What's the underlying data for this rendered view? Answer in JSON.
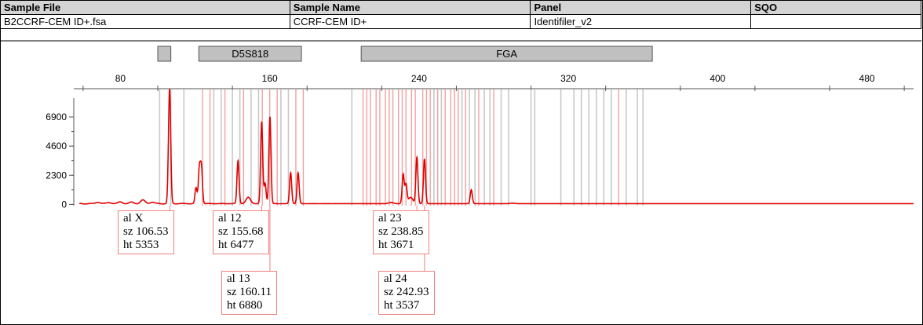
{
  "header": {
    "columns": [
      "Sample File",
      "Sample Name",
      "Panel",
      "SQO"
    ],
    "values": [
      "B2CCRF-CEM ID+.fsa",
      "CCRF-CEM ID+",
      "Identifiler_v2",
      ""
    ]
  },
  "colors": {
    "trace": "#e00000",
    "bin_gray": "#c8c8c8",
    "bin_red": "#f4a0a0",
    "marker_fill": "#c0c0c0",
    "label_border": "#f08080"
  },
  "chart_data": {
    "type": "line",
    "title": "",
    "xlabel": "",
    "ylabel": "",
    "xlim": [
      55,
      505
    ],
    "ylim": [
      -100,
      8200
    ],
    "x_ticks": [
      80,
      160,
      240,
      320,
      400,
      480
    ],
    "y_ticks": [
      0,
      2300,
      4600,
      6900
    ],
    "grid": false,
    "markers": [
      {
        "name": "",
        "start": 100,
        "end": 107
      },
      {
        "name": "D5S818",
        "start": 122,
        "end": 177
      },
      {
        "name": "FGA",
        "start": 209,
        "end": 365
      }
    ],
    "bins_gray": [
      101,
      107,
      114,
      130,
      134,
      140,
      144,
      150,
      154,
      166,
      170,
      204,
      248,
      252,
      263,
      267,
      270,
      275,
      278,
      284,
      288,
      300,
      302,
      316,
      323,
      327,
      331,
      335,
      339,
      343,
      351,
      357,
      360
    ],
    "bins_red": [
      124,
      128,
      136,
      146,
      156,
      160,
      164,
      174,
      178,
      210,
      212,
      214,
      217,
      219,
      222,
      224,
      226,
      229,
      231,
      233,
      236,
      238,
      242,
      244,
      246,
      250,
      254,
      257,
      259,
      261,
      265,
      272,
      280,
      347
    ],
    "peaks": [
      {
        "x": 68,
        "y": 120
      },
      {
        "x": 74,
        "y": 90
      },
      {
        "x": 80,
        "y": 130
      },
      {
        "x": 86,
        "y": 110
      },
      {
        "x": 92,
        "y": 280
      },
      {
        "x": 97,
        "y": 120
      },
      {
        "x": 106.1,
        "y": 4400
      },
      {
        "x": 106.53,
        "y": 5353
      },
      {
        "x": 120.5,
        "y": 1250
      },
      {
        "x": 122.3,
        "y": 2750
      },
      {
        "x": 123.4,
        "y": 2800
      },
      {
        "x": 143,
        "y": 3400
      },
      {
        "x": 148.5,
        "y": 500
      },
      {
        "x": 155.68,
        "y": 6477
      },
      {
        "x": 157.5,
        "y": 1600
      },
      {
        "x": 160.11,
        "y": 6880
      },
      {
        "x": 171.2,
        "y": 2450
      },
      {
        "x": 175.2,
        "y": 2450
      },
      {
        "x": 225,
        "y": 100
      },
      {
        "x": 231.5,
        "y": 2300
      },
      {
        "x": 233,
        "y": 1500
      },
      {
        "x": 235.5,
        "y": 500
      },
      {
        "x": 238.85,
        "y": 3671
      },
      {
        "x": 242.93,
        "y": 3537
      },
      {
        "x": 268,
        "y": 1100
      },
      {
        "x": 290,
        "y": 40
      }
    ],
    "labels": [
      {
        "al": "al X",
        "sz": "sz 106.53",
        "ht": "ht 5353"
      },
      {
        "al": "al 12",
        "sz": "sz 155.68",
        "ht": "ht 6477"
      },
      {
        "al": "al 13",
        "sz": "sz 160.11",
        "ht": "ht 6880"
      },
      {
        "al": "al 23",
        "sz": "sz 238.85",
        "ht": "ht 3671"
      },
      {
        "al": "al 24",
        "sz": "sz 242.93",
        "ht": "ht 3537"
      }
    ]
  }
}
